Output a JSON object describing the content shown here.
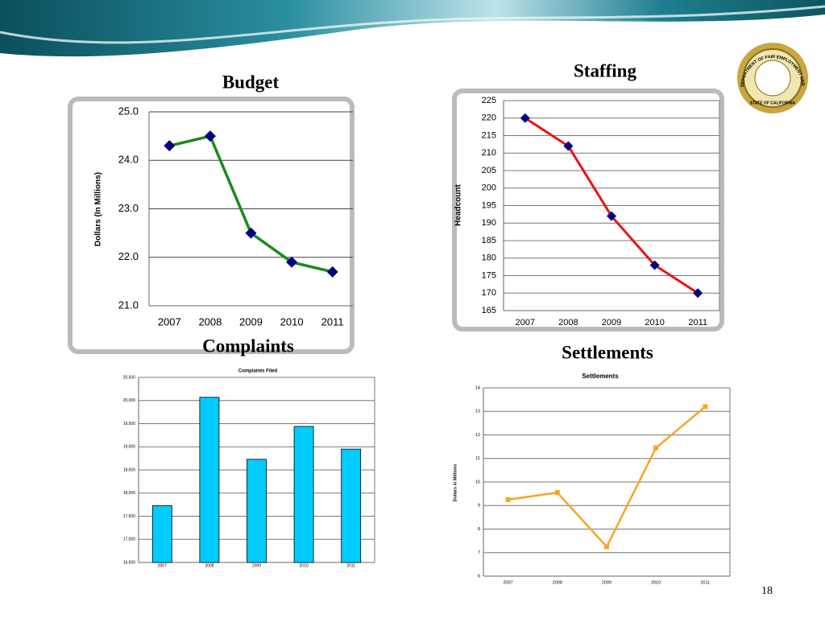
{
  "page_number": "18",
  "logo_text": "DEPARTMENT OF FAIR EMPLOYMENT AND HOUSING",
  "logo_subtext": "STATE OF CALIFORNIA",
  "chart_data": [
    {
      "type": "line",
      "heading": "Budget",
      "y_label": "Dollars (In Millions)",
      "categories": [
        "2007",
        "2008",
        "2009",
        "2010",
        "2011"
      ],
      "values": [
        24.3,
        24.5,
        22.5,
        21.9,
        21.7
      ],
      "color": "#1a8a1a",
      "marker_color": "#000080",
      "marker": "diamond",
      "ylim": [
        21,
        25
      ],
      "yticks": [
        {
          "value": 21,
          "label": "21.0"
        },
        {
          "value": 22,
          "label": "22.0"
        },
        {
          "value": 23,
          "label": "23.0"
        },
        {
          "value": 24,
          "label": "24.0"
        },
        {
          "value": 25,
          "label": "25.0"
        }
      ],
      "grid": true
    },
    {
      "type": "line",
      "heading": "Staffing",
      "y_label": "Headcount",
      "categories": [
        "2007",
        "2008",
        "2009",
        "2010",
        "2011"
      ],
      "values": [
        220,
        212,
        192,
        178,
        170
      ],
      "color": "#ee1111",
      "marker_color": "#000080",
      "marker": "diamond",
      "ylim": [
        165,
        225
      ],
      "yticks": [
        165,
        170,
        175,
        180,
        185,
        190,
        195,
        200,
        205,
        210,
        215,
        220,
        225
      ],
      "grid": true
    },
    {
      "type": "bar",
      "heading": "Complaints",
      "title": "Complaints Filed",
      "categories": [
        "2007",
        "2008",
        "2009",
        "2010",
        "2011"
      ],
      "values": [
        17730,
        20070,
        18730,
        19440,
        18950
      ],
      "color": "#00ccff",
      "ylim": [
        16500,
        20500
      ],
      "yticks": [
        {
          "value": 16500,
          "label": "16,500"
        },
        {
          "value": 17000,
          "label": "17,000"
        },
        {
          "value": 17500,
          "label": "17,500"
        },
        {
          "value": 18000,
          "label": "18,000"
        },
        {
          "value": 18500,
          "label": "18,500"
        },
        {
          "value": 19000,
          "label": "19,000"
        },
        {
          "value": 19500,
          "label": "19,500"
        },
        {
          "value": 20000,
          "label": "20,000"
        },
        {
          "value": 20500,
          "label": "20,500"
        }
      ],
      "grid": true
    },
    {
      "type": "line",
      "heading": "Settlements",
      "title": "Settlements",
      "y_label": "Dollars in Millions",
      "categories": [
        "2007",
        "2008",
        "2009",
        "2010",
        "2011"
      ],
      "values": [
        9.25,
        9.55,
        7.25,
        11.45,
        13.2
      ],
      "color": "#f5a623",
      "marker_color": "#f5a623",
      "marker": "square",
      "ylim": [
        6,
        14
      ],
      "yticks": [
        6,
        7,
        8,
        9,
        10,
        11,
        12,
        13,
        14
      ],
      "grid": true
    }
  ]
}
